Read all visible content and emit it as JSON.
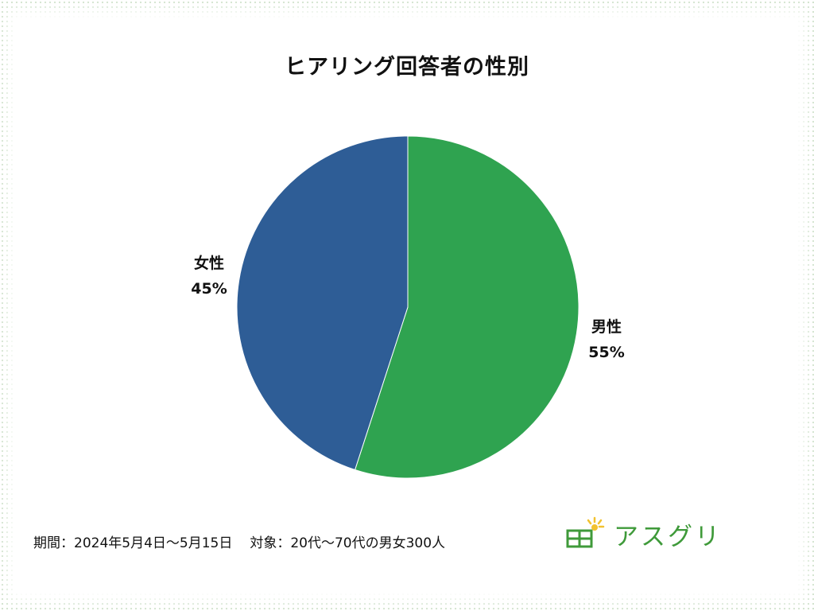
{
  "chart_data": {
    "type": "pie",
    "title": "ヒアリング回答者の性別",
    "slices": [
      {
        "label": "男性",
        "value": 55,
        "value_label": "55%",
        "color": "#2fa350"
      },
      {
        "label": "女性",
        "value": 45,
        "value_label": "45%",
        "color": "#2e5d96"
      }
    ],
    "start_angle": "12 o'clock",
    "direction": "clockwise"
  },
  "footnote": {
    "period": "期間：2024年5月4日〜5月15日",
    "target": "対象：20代〜70代の男女300人"
  },
  "logo": {
    "text": "アスグリ",
    "icon": "greenhouse-sun-icon",
    "color": "#3f9a3a"
  }
}
